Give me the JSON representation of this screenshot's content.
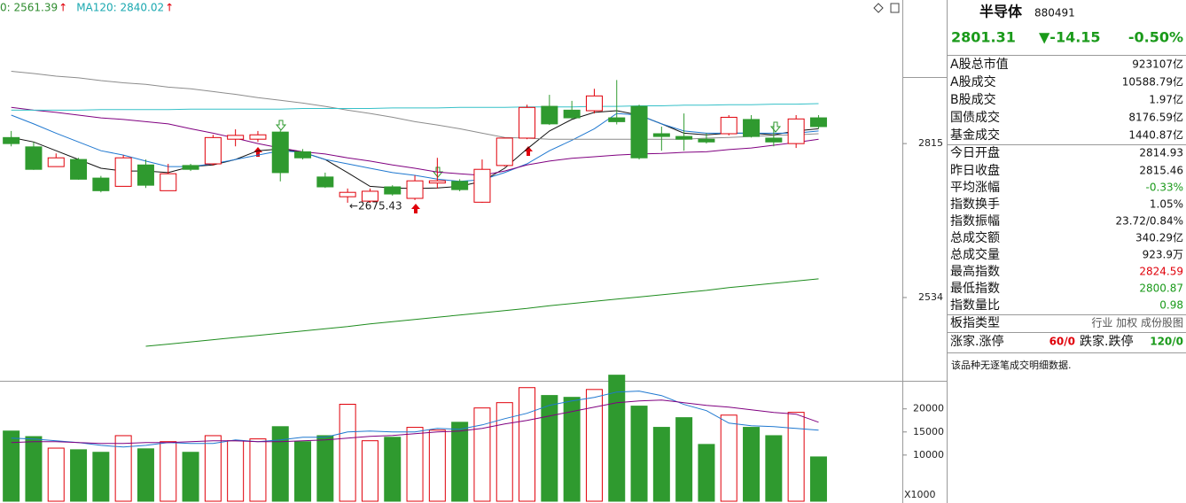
{
  "header": {
    "ma_labels": [
      {
        "text": "0: 2561.39",
        "arrow": "↑",
        "color": "#2e8b2e"
      },
      {
        "text": "MA120: 2840.02",
        "arrow": "↑",
        "color": "#1aa8b0"
      }
    ]
  },
  "chart_data": [
    {
      "type": "candlestick",
      "categories": [
        null,
        null,
        null,
        null,
        null,
        null,
        null,
        null,
        null,
        null,
        null,
        null,
        null,
        null,
        null,
        null,
        null,
        null,
        null,
        null,
        null,
        null,
        null,
        null,
        null,
        null,
        null,
        null,
        null,
        null,
        null,
        null,
        null,
        null,
        null,
        null,
        null
      ],
      "open": [
        2826,
        2809,
        2773,
        2786,
        2752,
        2737,
        2776,
        2729,
        2775,
        2778,
        2823,
        2823,
        2836,
        2800,
        2754,
        2718,
        2710,
        2736,
        2715,
        2743,
        2746,
        2708,
        2775,
        2825,
        2883,
        2876,
        2875,
        2862,
        2883,
        2833,
        2828,
        2823,
        2833,
        2859,
        2825,
        2815,
        2862
      ],
      "close": [
        2815,
        2768,
        2789,
        2750,
        2729,
        2789,
        2739,
        2760,
        2768,
        2826,
        2830,
        2831,
        2762,
        2789,
        2736,
        2726,
        2728,
        2723,
        2747,
        2747,
        2731,
        2768,
        2825,
        2881,
        2851,
        2862,
        2902,
        2855,
        2789,
        2828,
        2823,
        2818,
        2863,
        2828,
        2818,
        2860,
        2846
      ],
      "high": [
        2838,
        2818,
        2797,
        2789,
        2756,
        2794,
        2786,
        2778,
        2778,
        2831,
        2841,
        2838,
        2839,
        2805,
        2762,
        2733,
        2733,
        2739,
        2757,
        2789,
        2750,
        2786,
        2826,
        2886,
        2904,
        2893,
        2915,
        2931,
        2886,
        2846,
        2870,
        2834,
        2867,
        2867,
        2851,
        2867,
        2867
      ],
      "low": [
        2810,
        2767,
        2773,
        2749,
        2726,
        2737,
        2734,
        2729,
        2765,
        2775,
        2810,
        2818,
        2746,
        2786,
        2734,
        2707,
        2707,
        2720,
        2712,
        2733,
        2728,
        2707,
        2773,
        2823,
        2849,
        2860,
        2870,
        2850,
        2786,
        2802,
        2802,
        2815,
        2830,
        2826,
        2810,
        2807,
        2842
      ],
      "up_color": "#e0000a",
      "down_color": "#2f9a2f",
      "lines": [
        {
          "color": "#111111",
          "values": [
            2826,
            2818,
            2802,
            2786,
            2770,
            2765,
            2765,
            2762,
            2773,
            2776,
            2786,
            2802,
            2805,
            2799,
            2786,
            2762,
            2737,
            2734,
            2733,
            2734,
            2737,
            2746,
            2770,
            2805,
            2838,
            2859,
            2872,
            2875,
            2867,
            2851,
            2834,
            2831,
            2834,
            2834,
            2831,
            2838,
            2842
          ]
        },
        {
          "color": "#1f78d0",
          "values": [
            2867,
            2851,
            2834,
            2818,
            2802,
            2794,
            2783,
            2773,
            2773,
            2778,
            2786,
            2794,
            2802,
            2799,
            2786,
            2778,
            2770,
            2762,
            2757,
            2750,
            2746,
            2749,
            2762,
            2778,
            2802,
            2821,
            2842,
            2870,
            2867,
            2851,
            2838,
            2834,
            2834,
            2834,
            2834,
            2834,
            2838
          ]
        },
        {
          "color": "#800080",
          "values": [
            2881,
            2876,
            2872,
            2867,
            2862,
            2859,
            2855,
            2851,
            2842,
            2834,
            2825,
            2815,
            2807,
            2800,
            2796,
            2789,
            2783,
            2776,
            2770,
            2763,
            2760,
            2757,
            2765,
            2776,
            2783,
            2788,
            2791,
            2794,
            2796,
            2797,
            2799,
            2800,
            2804,
            2807,
            2812,
            2817,
            2823
          ]
        },
        {
          "color": "#8c8c8c",
          "values": [
            2947,
            2943,
            2938,
            2935,
            2930,
            2926,
            2923,
            2918,
            2915,
            2910,
            2905,
            2899,
            2894,
            2889,
            2883,
            2876,
            2870,
            2863,
            2855,
            2849,
            2842,
            2834,
            2826,
            2825,
            2823,
            2823,
            2823,
            2823,
            2823,
            2823,
            2823,
            2825,
            2826,
            2828,
            2830,
            2831,
            2833
          ]
        },
        {
          "color": "#35c0c8",
          "values": [
            2876,
            2876,
            2876,
            2876,
            2877,
            2877,
            2877,
            2877,
            2878,
            2878,
            2878,
            2878,
            2878,
            2879,
            2879,
            2879,
            2879,
            2880,
            2880,
            2880,
            2881,
            2881,
            2881,
            2882,
            2882,
            2882,
            2883,
            2883,
            2884,
            2884,
            2885,
            2885,
            2886,
            2886,
            2887,
            2887,
            2888
          ]
        },
        {
          "color": "#1e8c1e",
          "values": [
            null,
            null,
            null,
            null,
            null,
            null,
            2445,
            2449,
            2453,
            2457,
            2461,
            2465,
            2469,
            2473,
            2477,
            2481,
            2486,
            2490,
            2494,
            2498,
            2502,
            2506,
            2510,
            2514,
            2519,
            2523,
            2527,
            2531,
            2535,
            2539,
            2543,
            2547,
            2552,
            2556,
            2560,
            2564,
            2568
          ]
        }
      ],
      "ylim": [
        2382,
        3048
      ],
      "yticks": [
        2815,
        2534
      ],
      "annotation": "←2675.43"
    },
    {
      "type": "volume",
      "values": [
        15200,
        14000,
        11500,
        11150,
        10600,
        14200,
        11350,
        12900,
        10600,
        14200,
        13100,
        13500,
        16150,
        12900,
        14200,
        21000,
        13100,
        13850,
        16000,
        15400,
        17100,
        20200,
        21350,
        24600,
        22900,
        22500,
        24200,
        27300,
        20600,
        16000,
        18100,
        12300,
        18650,
        16000,
        14200,
        19250,
        9600
      ],
      "lines": [
        {
          "color": "#1f78d0",
          "values": [
            13650,
            13460,
            13080,
            12690,
            12110,
            11730,
            12110,
            12690,
            12500,
            12500,
            13270,
            12880,
            13270,
            13850,
            13850,
            15000,
            15190,
            15000,
            15000,
            15770,
            15580,
            16540,
            17880,
            19040,
            20770,
            21730,
            22500,
            23650,
            23850,
            22880,
            20960,
            19610,
            16920,
            16350,
            16150,
            15770,
            15380
          ]
        },
        {
          "color": "#800080",
          "values": [
            12690,
            12880,
            12880,
            12690,
            12500,
            12500,
            12690,
            12690,
            12880,
            13080,
            13080,
            12880,
            12880,
            13080,
            13270,
            13650,
            14040,
            14230,
            14610,
            15000,
            15190,
            15770,
            16730,
            17500,
            18460,
            19420,
            20380,
            21350,
            21730,
            21920,
            21350,
            20770,
            20380,
            19810,
            19230,
            18850,
            17110
          ]
        }
      ],
      "ylim": [
        0,
        28000
      ],
      "yticks": [
        20000,
        15000,
        10000
      ],
      "unit_label": "X1000"
    }
  ],
  "panel": {
    "title": "半导体",
    "code": "880491",
    "price": "2801.31",
    "change": "▼-14.15",
    "change_pct": "-0.50%",
    "quote_color": "#1a9a1a",
    "rows": [
      {
        "label": "A股总市值",
        "value": "923107亿"
      },
      {
        "label": "A股成交",
        "value": "10588.79亿"
      },
      {
        "label": "B股成交",
        "value": "1.97亿"
      },
      {
        "label": "国债成交",
        "value": "8176.59亿"
      },
      {
        "label": "基金成交",
        "value": "1440.87亿"
      },
      {
        "label": "今日开盘",
        "value": "2814.93"
      },
      {
        "label": "昨日收盘",
        "value": "2815.46"
      },
      {
        "label": "平均涨幅",
        "value": "-0.33%",
        "color": "#1a9a1a"
      },
      {
        "label": "指数换手",
        "value": "1.05%"
      },
      {
        "label": "指数振幅",
        "value": "23.72/0.84%"
      },
      {
        "label": "总成交额",
        "value": "340.29亿"
      },
      {
        "label": "总成交量",
        "value": "923.9万"
      },
      {
        "label": "最高指数",
        "value": "2824.59",
        "color": "#e0000a"
      },
      {
        "label": "最低指数",
        "value": "2800.87",
        "color": "#1a9a1a"
      },
      {
        "label": "指数量比",
        "value": "0.98",
        "color": "#1a9a1a"
      },
      {
        "label": "板指类型",
        "value": "行业 加权 成份股图",
        "color": "#555555"
      }
    ],
    "limit_row": {
      "up_label": "涨家.涨停",
      "up_value": "60/0",
      "up_color": "#e0000a",
      "down_label": "跌家.跌停",
      "down_value": "120/0",
      "down_color": "#1a9a1a"
    },
    "note": "该品种无逐笔成交明细数据."
  }
}
